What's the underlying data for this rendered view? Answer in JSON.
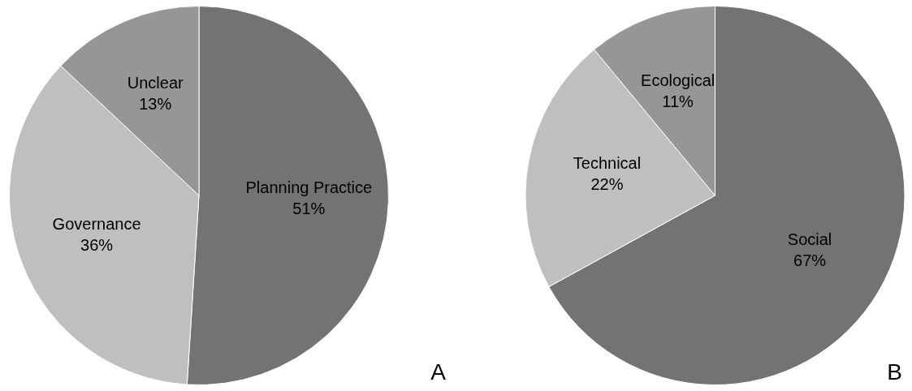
{
  "chart_data": [
    {
      "type": "pie",
      "categories": [
        "Planning Practice",
        "Governance",
        "Unclear"
      ],
      "values": [
        51,
        36,
        13
      ],
      "colors": [
        "#737373",
        "#bfbfbf",
        "#969696"
      ],
      "value_labels": [
        "51%",
        "36%",
        "13%"
      ],
      "legend": false,
      "annotations": [
        "A"
      ]
    },
    {
      "type": "pie",
      "categories": [
        "Social",
        "Technical",
        "Ecological"
      ],
      "values": [
        67,
        22,
        11
      ],
      "colors": [
        "#737373",
        "#bfbfbf",
        "#969696"
      ],
      "value_labels": [
        "67%",
        "22%",
        "11%"
      ],
      "legend": false,
      "annotations": [
        "B"
      ]
    }
  ]
}
